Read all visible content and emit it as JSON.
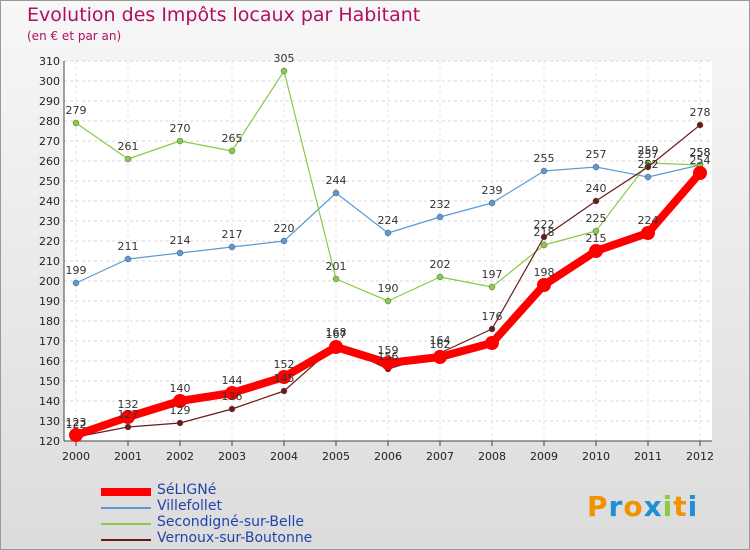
{
  "chart_data": {
    "type": "line",
    "title": "Evolution des Impôts locaux par Habitant",
    "subtitle": "(en € et par an)",
    "x": [
      "2000",
      "2001",
      "2002",
      "2003",
      "2004",
      "2005",
      "2006",
      "2007",
      "2008",
      "2009",
      "2010",
      "2011",
      "2012"
    ],
    "ylim": [
      120,
      310
    ],
    "yticks": [
      120,
      130,
      140,
      150,
      160,
      170,
      180,
      190,
      200,
      210,
      220,
      230,
      240,
      250,
      260,
      270,
      280,
      290,
      300,
      310
    ],
    "grid": true,
    "legend_position": "bottom-left",
    "series": [
      {
        "name": "SéLIGNé",
        "color": "#ff0000",
        "values": [
          123,
          132,
          140,
          144,
          152,
          167,
          159,
          162,
          169,
          198,
          215,
          224,
          254
        ],
        "labels": [
          "123",
          "132",
          "140",
          "144",
          "152",
          "167",
          "159",
          "162",
          "",
          "198",
          "215",
          "224",
          "254"
        ]
      },
      {
        "name": "Villefollet",
        "color": "#5b9bd5",
        "values": [
          199,
          211,
          214,
          217,
          220,
          244,
          224,
          232,
          239,
          255,
          257,
          252,
          258
        ],
        "labels": [
          "199",
          "211",
          "214",
          "217",
          "220",
          "244",
          "224",
          "232",
          "239",
          "255",
          "257",
          "252",
          "258"
        ]
      },
      {
        "name": "Secondigné-sur-Belle",
        "color": "#88cc44",
        "values": [
          279,
          261,
          270,
          265,
          305,
          201,
          190,
          202,
          197,
          218,
          225,
          259,
          258
        ],
        "labels": [
          "279",
          "261",
          "270",
          "265",
          "305",
          "201",
          "190",
          "202",
          "197",
          "218",
          "225",
          "259",
          "258"
        ]
      },
      {
        "name": "Vernoux-sur-Boutonne",
        "color": "#6b1a1a",
        "values": [
          122,
          127,
          129,
          136,
          145,
          168,
          156,
          164,
          176,
          222,
          240,
          257,
          278
        ],
        "labels": [
          "122",
          "127",
          "129",
          "136",
          "145",
          "168",
          "156",
          "164",
          "176",
          "222",
          "240",
          "257",
          "278"
        ]
      }
    ]
  },
  "logo": {
    "text": "Proxiti",
    "colors": [
      "#f29200",
      "#1f8fd6",
      "#f29200",
      "#1f8fd6",
      "#88cc44",
      "#f29200",
      "#1f8fd6"
    ]
  }
}
